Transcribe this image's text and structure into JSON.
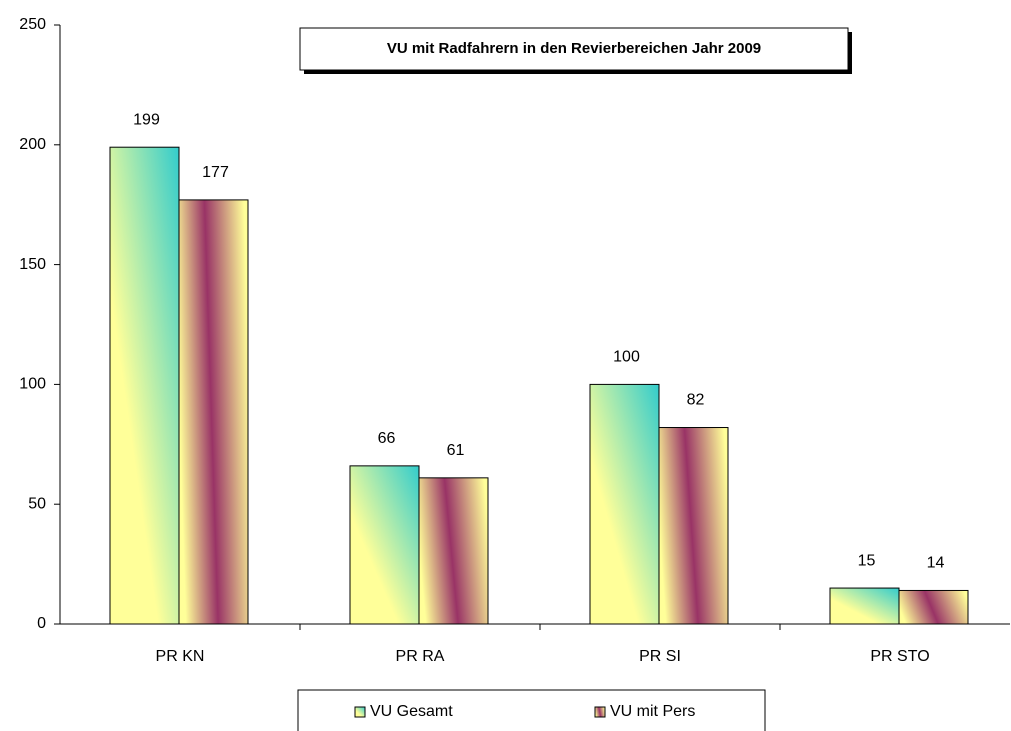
{
  "chart_data": {
    "type": "bar",
    "title": "VU mit Radfahrern in den Revierbereichen Jahr 2009",
    "categories": [
      "PR KN",
      "PR RA",
      "PR SI",
      "PR STO"
    ],
    "series": [
      {
        "name": "VU Gesamt",
        "color": "#33cccc",
        "values": [
          199,
          66,
          100,
          15
        ]
      },
      {
        "name": "VU mit Pers",
        "color": "#993366",
        "values": [
          177,
          61,
          82,
          14
        ]
      }
    ],
    "ylim": [
      0,
      250
    ],
    "yticks": [
      0,
      50,
      100,
      150,
      200,
      250
    ],
    "grid": false,
    "legend": "bottom"
  }
}
